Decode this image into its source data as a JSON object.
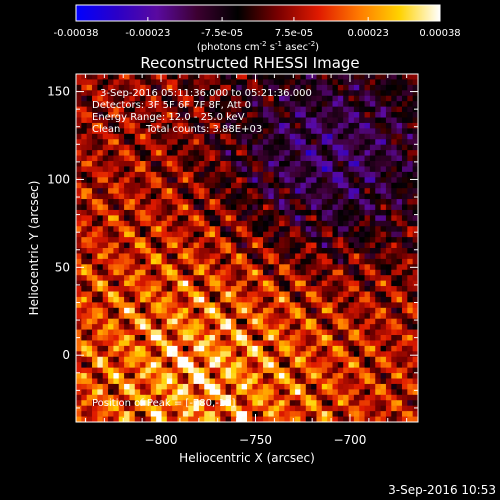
{
  "chart_data": {
    "type": "heatmap",
    "title": "Reconstructed RHESSI Image",
    "xlabel": "Heliocentric X (arcsec)",
    "ylabel": "Heliocentric Y (arcsec)",
    "xlim": [
      -845,
      -664
    ],
    "ylim": [
      -38,
      160
    ],
    "x_ticks": [
      -800,
      -750,
      -700
    ],
    "y_ticks": [
      0,
      50,
      100,
      150
    ],
    "colorbar": {
      "min": -0.00038,
      "max": 0.00038,
      "tick_values": [
        -0.00038,
        -0.00023,
        -7.5e-05,
        7.5e-05,
        0.00023,
        0.00038
      ],
      "tick_labels": [
        "-0.00038",
        "-0.00023",
        "-7.5e-05",
        "7.5e-05",
        "0.00023",
        "0.00038"
      ],
      "units_prefix": "(photons cm",
      "units_exp1": "-2",
      "units_mid1": " s",
      "units_exp2": "-1",
      "units_mid2": " asec",
      "units_exp3": "-2",
      "units_suffix": ")",
      "colors": [
        "#0000ff",
        "#2a00c8",
        "#5a0aa0",
        "#3c0030",
        "#000000",
        "#7a0000",
        "#e01a00",
        "#ff7a00",
        "#ffd200",
        "#ffffff"
      ]
    },
    "grid": false,
    "pattern_note_peak": [
      -780,
      -12
    ]
  },
  "annotations": {
    "time_range": "3-Sep-2016 05:11:36.000 to 05:21:36.000",
    "detectors": "Detectors: 3F 5F 6F 7F 8F, Att 0",
    "energy": "Energy Range: 12.0 - 25.0 keV",
    "clean_label": "Clean",
    "total_counts": "Total counts: 3.88E+03",
    "peak": "Position of Peak = [-780,-12]"
  },
  "footer": {
    "timestamp": "3-Sep-2016 10:53"
  }
}
